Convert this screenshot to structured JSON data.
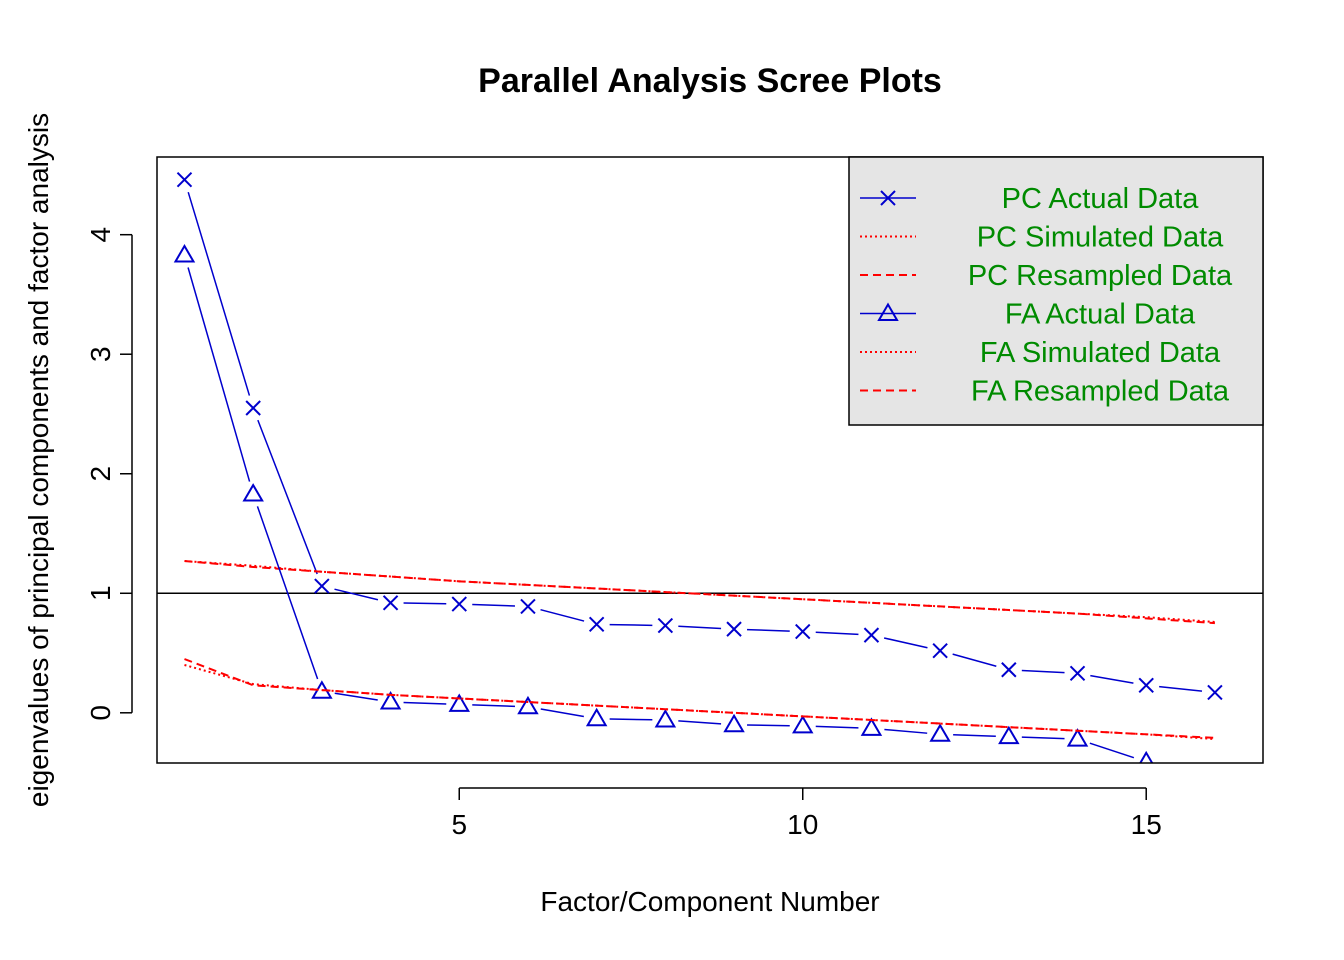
{
  "chart_data": {
    "type": "line",
    "title": "Parallel Analysis Scree Plots",
    "xlabel": "Factor/Component Number",
    "ylabel": "eigenvalues of principal components and factor analysis",
    "xlim": [
      0.6,
      16.7
    ],
    "ylim": [
      -0.42,
      4.65
    ],
    "x_ticks": [
      5,
      10,
      15
    ],
    "y_ticks": [
      0,
      1,
      2,
      3,
      4
    ],
    "reference_line_y": 1,
    "legend_position": "top-right",
    "legend_background": "#e5e5e5",
    "x": [
      1,
      2,
      3,
      4,
      5,
      6,
      7,
      8,
      9,
      10,
      11,
      12,
      13,
      14,
      15,
      16
    ],
    "series": [
      {
        "name": "PC  Actual Data",
        "style": "solid-x",
        "color": "#0000cd",
        "values": [
          4.46,
          2.55,
          1.06,
          0.92,
          0.91,
          0.89,
          0.74,
          0.73,
          0.7,
          0.68,
          0.65,
          0.52,
          0.36,
          0.33,
          0.23,
          0.17
        ]
      },
      {
        "name": "PC  Simulated Data",
        "style": "dotted",
        "color": "#ff0000",
        "values": [
          1.27,
          1.23,
          1.18,
          1.14,
          1.1,
          1.07,
          1.04,
          1.01,
          0.98,
          0.95,
          0.92,
          0.89,
          0.86,
          0.83,
          0.8,
          0.76
        ]
      },
      {
        "name": "PC  Resampled Data",
        "style": "dashed",
        "color": "#ff0000",
        "values": [
          1.27,
          1.22,
          1.18,
          1.14,
          1.1,
          1.07,
          1.04,
          1.01,
          0.98,
          0.95,
          0.92,
          0.89,
          0.86,
          0.83,
          0.79,
          0.75
        ]
      },
      {
        "name": "FA  Actual Data",
        "style": "solid-triangle",
        "color": "#0000cd",
        "values": [
          3.83,
          1.83,
          0.18,
          0.09,
          0.07,
          0.05,
          -0.05,
          -0.06,
          -0.1,
          -0.11,
          -0.13,
          -0.18,
          -0.2,
          -0.22,
          -0.41,
          null
        ]
      },
      {
        "name": "FA  Simulated Data",
        "style": "dotted",
        "color": "#ff0000",
        "values": [
          0.4,
          0.24,
          0.19,
          0.15,
          0.12,
          0.09,
          0.06,
          0.03,
          0.0,
          -0.03,
          -0.06,
          -0.09,
          -0.12,
          -0.15,
          -0.18,
          -0.22
        ]
      },
      {
        "name": "FA  Resampled Data",
        "style": "dashed",
        "color": "#ff0000",
        "values": [
          0.45,
          0.23,
          0.19,
          0.15,
          0.12,
          0.09,
          0.06,
          0.03,
          0.0,
          -0.03,
          -0.06,
          -0.09,
          -0.12,
          -0.15,
          -0.18,
          -0.21
        ]
      }
    ]
  }
}
